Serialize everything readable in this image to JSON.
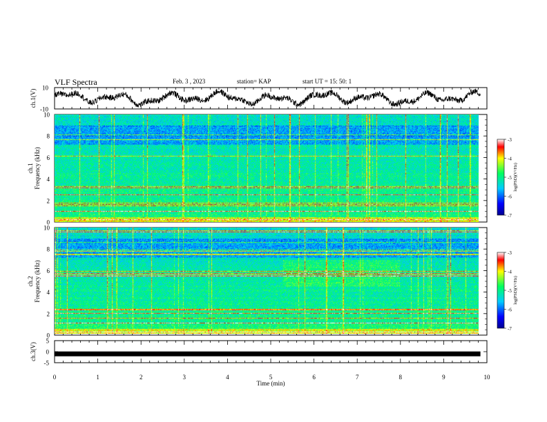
{
  "header": {
    "title": "VLF Spectra",
    "date": "Feb. 3 , 2023",
    "station": "station= KAP",
    "start_ut": "start UT = 15: 50: 1"
  },
  "chart_data": [
    {
      "type": "line",
      "name": "ch1-waveform",
      "ylabel": "ch.1(V)",
      "ylim": [
        -10,
        10
      ],
      "yticks": [
        "10",
        "-10"
      ],
      "xlim": [
        0,
        10
      ],
      "trace": "dense noisy waveform oscillating roughly between -7 and 7 V"
    },
    {
      "type": "heatmap",
      "name": "ch1-spectrogram",
      "ylabel_top": "ch.1",
      "ylabel": "Frequency (kHz)",
      "ylim": [
        0,
        10
      ],
      "yticks": [
        "0",
        "2",
        "4",
        "6",
        "8",
        "10"
      ],
      "xlim": [
        0,
        9.85
      ],
      "colorbar": {
        "label": "log(PSD)(V²/Hz)",
        "range": [
          -7,
          -3
        ],
        "ticks": [
          "-3",
          "-4",
          "-5",
          "-6",
          "-7"
        ]
      }
    },
    {
      "type": "heatmap",
      "name": "ch2-spectrogram",
      "ylabel_top": "ch.2",
      "ylabel": "Frequency (kHz)",
      "ylim": [
        0,
        10
      ],
      "yticks": [
        "0",
        "2",
        "4",
        "6",
        "8",
        "10"
      ],
      "xlim": [
        0,
        9.85
      ],
      "colorbar": {
        "label": "log(PSD)(V²/Hz)",
        "range": [
          -7,
          -3
        ],
        "ticks": [
          "-3",
          "-4",
          "-5",
          "-6",
          "-7"
        ]
      }
    },
    {
      "type": "line",
      "name": "ch3-waveform",
      "ylabel": "ch.3(V)",
      "ylim": [
        -5,
        5
      ],
      "yticks": [
        "5",
        "0",
        "-5"
      ],
      "xlim": [
        0,
        10
      ],
      "trace": "thick flat line near -1 V"
    }
  ],
  "x_axis": {
    "label": "Time (min)",
    "ticks": [
      "0",
      "1",
      "2",
      "3",
      "4",
      "5",
      "6",
      "7",
      "8",
      "9",
      "10"
    ]
  },
  "colors": {
    "low": "#0000c8",
    "mid_low": "#00ccff",
    "mid": "#00ff80",
    "mid_high": "#ffff00",
    "high": "#ff0000"
  }
}
